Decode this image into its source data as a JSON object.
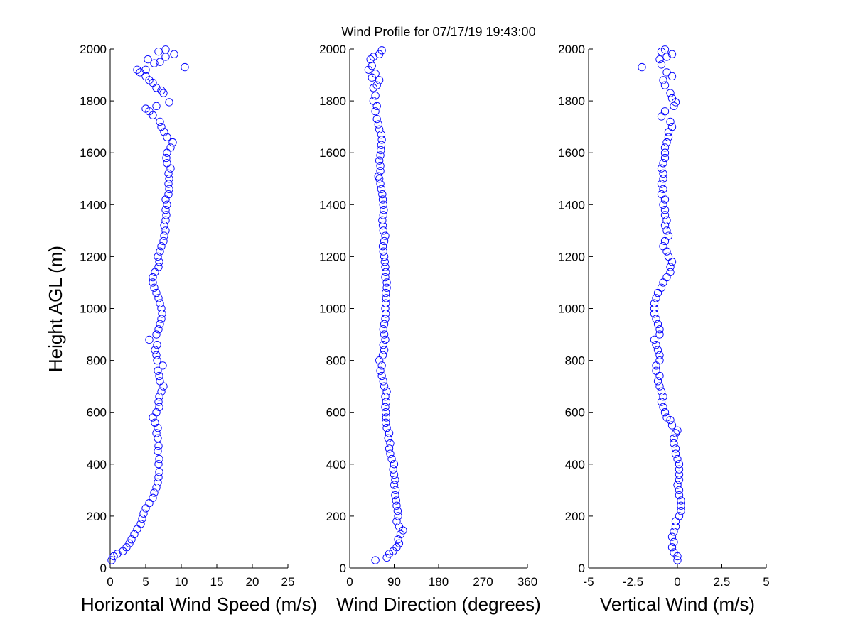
{
  "chart_data": {
    "type": "scatter",
    "title": "Wind Profile for  07/17/19 19:43:00",
    "ylabel": "Height AGL (m)",
    "ylim": [
      0,
      2000
    ],
    "yticks": [
      "0",
      "200",
      "400",
      "600",
      "800",
      "1000",
      "1200",
      "1400",
      "1600",
      "1800",
      "2000"
    ],
    "marker_color": "#0000ff",
    "grid": false,
    "panels": [
      {
        "xlabel": "Horizontal Wind Speed (m/s)",
        "xlim": [
          0,
          25
        ],
        "xticks": [
          "0",
          "5",
          "10",
          "15",
          "20",
          "25"
        ],
        "points": [
          [
            0.2,
            30
          ],
          [
            0.5,
            45
          ],
          [
            1.0,
            55
          ],
          [
            1.8,
            65
          ],
          [
            2.3,
            80
          ],
          [
            2.7,
            95
          ],
          [
            3.0,
            110
          ],
          [
            3.4,
            130
          ],
          [
            3.8,
            150
          ],
          [
            4.3,
            170
          ],
          [
            4.5,
            190
          ],
          [
            4.7,
            210
          ],
          [
            5.0,
            230
          ],
          [
            5.5,
            250
          ],
          [
            6.0,
            270
          ],
          [
            6.2,
            290
          ],
          [
            6.5,
            310
          ],
          [
            6.7,
            330
          ],
          [
            6.8,
            350
          ],
          [
            6.9,
            370
          ],
          [
            6.8,
            400
          ],
          [
            6.9,
            420
          ],
          [
            6.7,
            450
          ],
          [
            6.8,
            470
          ],
          [
            6.7,
            500
          ],
          [
            6.5,
            520
          ],
          [
            6.7,
            540
          ],
          [
            6.3,
            560
          ],
          [
            6.0,
            580
          ],
          [
            6.5,
            600
          ],
          [
            6.9,
            620
          ],
          [
            6.8,
            640
          ],
          [
            6.9,
            660
          ],
          [
            7.2,
            680
          ],
          [
            7.5,
            700
          ],
          [
            7.0,
            720
          ],
          [
            6.9,
            740
          ],
          [
            6.7,
            760
          ],
          [
            7.4,
            780
          ],
          [
            6.6,
            800
          ],
          [
            6.5,
            820
          ],
          [
            6.3,
            840
          ],
          [
            6.6,
            860
          ],
          [
            5.5,
            880
          ],
          [
            6.5,
            900
          ],
          [
            6.8,
            920
          ],
          [
            7.0,
            940
          ],
          [
            7.2,
            960
          ],
          [
            7.3,
            980
          ],
          [
            7.2,
            1000
          ],
          [
            7.0,
            1020
          ],
          [
            6.8,
            1040
          ],
          [
            6.5,
            1060
          ],
          [
            6.2,
            1080
          ],
          [
            6.0,
            1100
          ],
          [
            6.0,
            1120
          ],
          [
            6.3,
            1140
          ],
          [
            6.8,
            1160
          ],
          [
            6.9,
            1180
          ],
          [
            6.7,
            1200
          ],
          [
            7.0,
            1220
          ],
          [
            7.2,
            1240
          ],
          [
            7.5,
            1260
          ],
          [
            7.6,
            1280
          ],
          [
            7.8,
            1300
          ],
          [
            7.6,
            1320
          ],
          [
            7.8,
            1340
          ],
          [
            7.9,
            1360
          ],
          [
            7.8,
            1380
          ],
          [
            8.0,
            1400
          ],
          [
            7.8,
            1420
          ],
          [
            8.2,
            1440
          ],
          [
            8.3,
            1460
          ],
          [
            8.2,
            1480
          ],
          [
            8.3,
            1500
          ],
          [
            8.2,
            1520
          ],
          [
            8.5,
            1540
          ],
          [
            8.0,
            1560
          ],
          [
            7.9,
            1580
          ],
          [
            8.0,
            1600
          ],
          [
            8.5,
            1620
          ],
          [
            8.8,
            1640
          ],
          [
            8.0,
            1660
          ],
          [
            7.6,
            1680
          ],
          [
            7.2,
            1700
          ],
          [
            7.0,
            1720
          ],
          [
            6.0,
            1745
          ],
          [
            5.0,
            1770
          ],
          [
            5.5,
            1760
          ],
          [
            6.5,
            1780
          ],
          [
            8.3,
            1795
          ],
          [
            7.5,
            1830
          ],
          [
            7.2,
            1840
          ],
          [
            6.5,
            1850
          ],
          [
            6.0,
            1870
          ],
          [
            5.5,
            1880
          ],
          [
            5.0,
            1895
          ],
          [
            4.2,
            1910
          ],
          [
            3.8,
            1920
          ],
          [
            10.5,
            1930
          ],
          [
            5.0,
            1920
          ],
          [
            6.2,
            1945
          ],
          [
            7.0,
            1950
          ],
          [
            5.3,
            1960
          ],
          [
            7.8,
            1970
          ],
          [
            9.0,
            1980
          ],
          [
            6.8,
            1990
          ],
          [
            7.8,
            1998
          ]
        ]
      },
      {
        "xlabel": "Wind Direction (degrees)",
        "xlim": [
          0,
          360
        ],
        "xticks": [
          "0",
          "90",
          "180",
          "270",
          "360"
        ],
        "points": [
          [
            52,
            30
          ],
          [
            75,
            40
          ],
          [
            80,
            55
          ],
          [
            88,
            65
          ],
          [
            95,
            80
          ],
          [
            100,
            95
          ],
          [
            98,
            110
          ],
          [
            103,
            130
          ],
          [
            108,
            145
          ],
          [
            100,
            160
          ],
          [
            95,
            180
          ],
          [
            98,
            200
          ],
          [
            97,
            220
          ],
          [
            95,
            240
          ],
          [
            94,
            260
          ],
          [
            92,
            280
          ],
          [
            93,
            300
          ],
          [
            90,
            320
          ],
          [
            92,
            340
          ],
          [
            90,
            360
          ],
          [
            88,
            380
          ],
          [
            90,
            400
          ],
          [
            85,
            420
          ],
          [
            82,
            440
          ],
          [
            80,
            460
          ],
          [
            82,
            480
          ],
          [
            78,
            500
          ],
          [
            80,
            520
          ],
          [
            75,
            540
          ],
          [
            73,
            560
          ],
          [
            74,
            580
          ],
          [
            73,
            600
          ],
          [
            72,
            620
          ],
          [
            74,
            640
          ],
          [
            72,
            660
          ],
          [
            75,
            680
          ],
          [
            70,
            700
          ],
          [
            68,
            720
          ],
          [
            65,
            740
          ],
          [
            62,
            760
          ],
          [
            65,
            780
          ],
          [
            60,
            800
          ],
          [
            67,
            820
          ],
          [
            70,
            840
          ],
          [
            68,
            860
          ],
          [
            72,
            880
          ],
          [
            70,
            900
          ],
          [
            68,
            920
          ],
          [
            70,
            940
          ],
          [
            72,
            960
          ],
          [
            73,
            980
          ],
          [
            72,
            1000
          ],
          [
            73,
            1020
          ],
          [
            74,
            1040
          ],
          [
            73,
            1060
          ],
          [
            75,
            1080
          ],
          [
            75,
            1100
          ],
          [
            72,
            1120
          ],
          [
            73,
            1140
          ],
          [
            72,
            1160
          ],
          [
            71,
            1180
          ],
          [
            70,
            1200
          ],
          [
            68,
            1220
          ],
          [
            67,
            1240
          ],
          [
            70,
            1260
          ],
          [
            72,
            1280
          ],
          [
            68,
            1300
          ],
          [
            67,
            1320
          ],
          [
            66,
            1340
          ],
          [
            68,
            1360
          ],
          [
            69,
            1380
          ],
          [
            68,
            1400
          ],
          [
            67,
            1420
          ],
          [
            66,
            1440
          ],
          [
            64,
            1460
          ],
          [
            62,
            1480
          ],
          [
            60,
            1500
          ],
          [
            58,
            1510
          ],
          [
            62,
            1530
          ],
          [
            62,
            1550
          ],
          [
            60,
            1570
          ],
          [
            62,
            1590
          ],
          [
            63,
            1610
          ],
          [
            64,
            1630
          ],
          [
            65,
            1650
          ],
          [
            64,
            1670
          ],
          [
            60,
            1690
          ],
          [
            58,
            1710
          ],
          [
            55,
            1730
          ],
          [
            52,
            1760
          ],
          [
            55,
            1780
          ],
          [
            48,
            1800
          ],
          [
            52,
            1820
          ],
          [
            48,
            1850
          ],
          [
            55,
            1860
          ],
          [
            60,
            1880
          ],
          [
            45,
            1890
          ],
          [
            52,
            1905
          ],
          [
            38,
            1920
          ],
          [
            45,
            1935
          ],
          [
            42,
            1960
          ],
          [
            48,
            1970
          ],
          [
            60,
            1980
          ],
          [
            65,
            1995
          ]
        ]
      },
      {
        "xlabel": "Vertical Wind (m/s)",
        "xlim": [
          -5,
          5
        ],
        "xticks": [
          "-5",
          "-2.5",
          "0",
          "2.5",
          "5"
        ],
        "points": [
          [
            0.0,
            30
          ],
          [
            0.0,
            45
          ],
          [
            -0.2,
            60
          ],
          [
            -0.3,
            80
          ],
          [
            -0.2,
            100
          ],
          [
            -0.3,
            120
          ],
          [
            -0.2,
            140
          ],
          [
            -0.1,
            160
          ],
          [
            -0.1,
            180
          ],
          [
            0.1,
            200
          ],
          [
            0.2,
            220
          ],
          [
            0.2,
            240
          ],
          [
            0.2,
            260
          ],
          [
            0.1,
            280
          ],
          [
            0.1,
            300
          ],
          [
            0.0,
            320
          ],
          [
            0.1,
            340
          ],
          [
            0.1,
            360
          ],
          [
            0.1,
            380
          ],
          [
            0.1,
            400
          ],
          [
            0.0,
            420
          ],
          [
            -0.1,
            440
          ],
          [
            -0.1,
            460
          ],
          [
            -0.2,
            480
          ],
          [
            -0.2,
            500
          ],
          [
            -0.1,
            520
          ],
          [
            0.0,
            530
          ],
          [
            -0.3,
            550
          ],
          [
            -0.4,
            570
          ],
          [
            -0.6,
            580
          ],
          [
            -0.7,
            600
          ],
          [
            -0.8,
            620
          ],
          [
            -0.9,
            640
          ],
          [
            -0.8,
            660
          ],
          [
            -0.9,
            680
          ],
          [
            -1.0,
            700
          ],
          [
            -1.1,
            720
          ],
          [
            -1.0,
            740
          ],
          [
            -1.2,
            760
          ],
          [
            -1.2,
            780
          ],
          [
            -1.0,
            800
          ],
          [
            -1.0,
            820
          ],
          [
            -1.1,
            840
          ],
          [
            -1.2,
            860
          ],
          [
            -1.3,
            880
          ],
          [
            -1.0,
            900
          ],
          [
            -1.0,
            920
          ],
          [
            -1.1,
            940
          ],
          [
            -1.2,
            960
          ],
          [
            -1.3,
            980
          ],
          [
            -1.3,
            1000
          ],
          [
            -1.3,
            1020
          ],
          [
            -1.2,
            1040
          ],
          [
            -1.1,
            1060
          ],
          [
            -0.9,
            1080
          ],
          [
            -0.8,
            1100
          ],
          [
            -0.6,
            1120
          ],
          [
            -0.4,
            1140
          ],
          [
            -0.4,
            1160
          ],
          [
            -0.3,
            1180
          ],
          [
            -0.5,
            1200
          ],
          [
            -0.6,
            1220
          ],
          [
            -0.8,
            1240
          ],
          [
            -0.7,
            1260
          ],
          [
            -0.5,
            1280
          ],
          [
            -0.6,
            1300
          ],
          [
            -0.7,
            1320
          ],
          [
            -0.6,
            1340
          ],
          [
            -0.7,
            1360
          ],
          [
            -0.7,
            1380
          ],
          [
            -0.8,
            1400
          ],
          [
            -0.7,
            1420
          ],
          [
            -0.9,
            1440
          ],
          [
            -0.8,
            1460
          ],
          [
            -0.9,
            1480
          ],
          [
            -0.8,
            1500
          ],
          [
            -0.8,
            1520
          ],
          [
            -0.9,
            1540
          ],
          [
            -0.8,
            1560
          ],
          [
            -0.7,
            1580
          ],
          [
            -0.7,
            1600
          ],
          [
            -0.7,
            1620
          ],
          [
            -0.6,
            1640
          ],
          [
            -0.5,
            1660
          ],
          [
            -0.5,
            1680
          ],
          [
            -0.3,
            1700
          ],
          [
            -0.4,
            1720
          ],
          [
            -0.9,
            1740
          ],
          [
            -0.7,
            1760
          ],
          [
            -0.2,
            1780
          ],
          [
            -0.1,
            1795
          ],
          [
            -0.3,
            1810
          ],
          [
            -0.4,
            1830
          ],
          [
            -0.7,
            1860
          ],
          [
            -0.8,
            1880
          ],
          [
            -0.3,
            1895
          ],
          [
            -0.6,
            1910
          ],
          [
            -2.0,
            1930
          ],
          [
            -0.9,
            1940
          ],
          [
            -1.0,
            1960
          ],
          [
            -0.6,
            1970
          ],
          [
            -0.3,
            1980
          ],
          [
            -0.9,
            1990
          ],
          [
            -0.7,
            1998
          ]
        ]
      }
    ]
  }
}
